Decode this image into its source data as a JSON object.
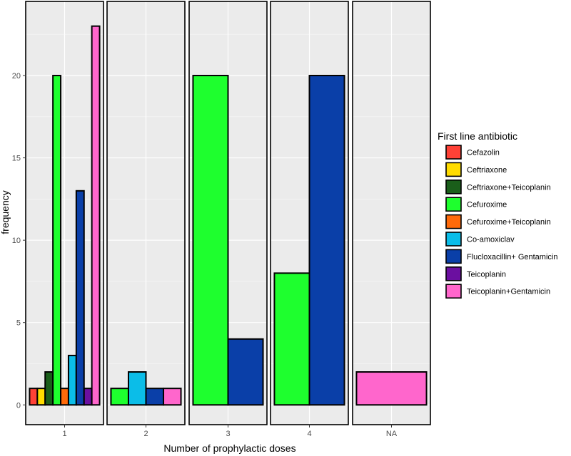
{
  "chart_data": {
    "type": "bar",
    "xlabel": "Number of prophylactic doses",
    "ylabel": "frequency",
    "ylim": [
      -1.2,
      24.5
    ],
    "yticks": [
      0,
      5,
      10,
      15,
      20
    ],
    "facets": [
      {
        "label": "1",
        "bars": [
          {
            "category": "Cefazolin",
            "value": 1
          },
          {
            "category": "Ceftriaxone",
            "value": 1
          },
          {
            "category": "Ceftriaxone+Teicoplanin",
            "value": 2
          },
          {
            "category": "Cefuroxime",
            "value": 20
          },
          {
            "category": "Cefuroxime+Teicoplanin",
            "value": 1
          },
          {
            "category": "Co-amoxiclav",
            "value": 3
          },
          {
            "category": "Flucloxacillin+ Gentamicin",
            "value": 13
          },
          {
            "category": "Teicoplanin",
            "value": 1
          },
          {
            "category": "Teicoplanin+Gentamicin",
            "value": 23
          }
        ]
      },
      {
        "label": "2",
        "bars": [
          {
            "category": "Cefuroxime",
            "value": 1
          },
          {
            "category": "Co-amoxiclav",
            "value": 2
          },
          {
            "category": "Flucloxacillin+ Gentamicin",
            "value": 1
          },
          {
            "category": "Teicoplanin+Gentamicin",
            "value": 1
          }
        ]
      },
      {
        "label": "3",
        "bars": [
          {
            "category": "Cefuroxime",
            "value": 20
          },
          {
            "category": "Flucloxacillin+ Gentamicin",
            "value": 4
          }
        ]
      },
      {
        "label": "4",
        "bars": [
          {
            "category": "Cefuroxime",
            "value": 8
          },
          {
            "category": "Flucloxacillin+ Gentamicin",
            "value": 20
          }
        ]
      },
      {
        "label": "NA",
        "bars": [
          {
            "category": "Teicoplanin+Gentamicin",
            "value": 2
          }
        ]
      }
    ],
    "legend": {
      "title": "First line antibiotic",
      "placement": "right",
      "entries": [
        {
          "label": "Cefazolin",
          "color": "#FF4136"
        },
        {
          "label": "Ceftriaxone",
          "color": "#FFDC00"
        },
        {
          "label": "Ceftriaxone+Teicoplanin",
          "color": "#1A5E1A"
        },
        {
          "label": "Cefuroxime",
          "color": "#1EFF2E"
        },
        {
          "label": "Cefuroxime+Teicoplanin",
          "color": "#FF6A0A"
        },
        {
          "label": "Co-amoxiclav",
          "color": "#0BBDE8"
        },
        {
          "label": "Flucloxacillin+ Gentamicin",
          "color": "#0A3FA8"
        },
        {
          "label": "Teicoplanin",
          "color": "#6B0FA0"
        },
        {
          "label": "Teicoplanin+Gentamicin",
          "color": "#FF66CC"
        }
      ]
    }
  }
}
